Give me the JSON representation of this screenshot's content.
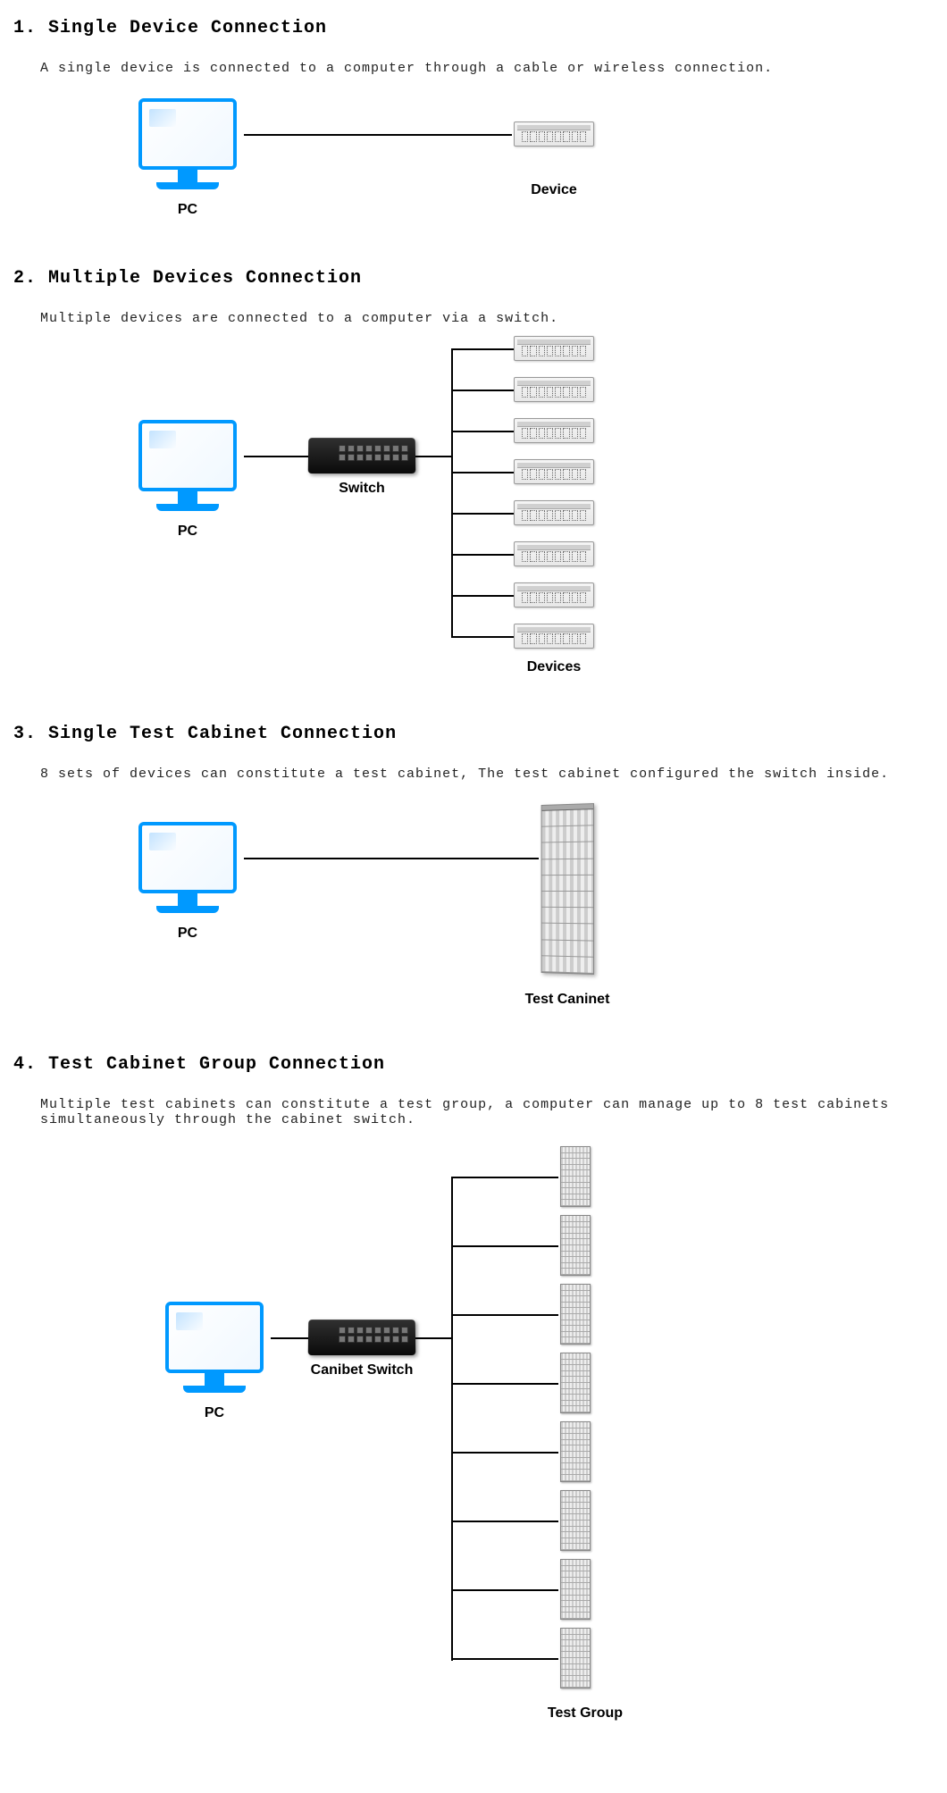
{
  "sections": {
    "s1": {
      "title": "1. Single Device Connection",
      "desc": "A single device is connected to a computer through a cable or wireless connection.",
      "labels": {
        "pc": "PC",
        "device": "Device"
      },
      "colors": {
        "pc_border": "#0099ff",
        "line": "#000000"
      }
    },
    "s2": {
      "title": "2. Multiple Devices Connection",
      "desc": "Multiple devices are connected to a computer via a switch.",
      "labels": {
        "pc": "PC",
        "switch": "Switch",
        "devices": "Devices"
      },
      "device_count": 8,
      "colors": {
        "switch_bg": "#1a1a1a"
      }
    },
    "s3": {
      "title": "3. Single Test Cabinet Connection",
      "desc": "8 sets of devices can constitute a test cabinet, The test cabinet configured the switch inside.",
      "labels": {
        "pc": "PC",
        "cabinet": "Test Caninet"
      },
      "cabinet_units": 10
    },
    "s4": {
      "title": "4. Test Cabinet Group Connection",
      "desc": "Multiple test cabinets can constitute a test group, a computer can manage up to 8 test cabinets simultaneously through the cabinet switch.",
      "labels": {
        "pc": "PC",
        "switch": "Canibet Switch",
        "group": "Test Group"
      },
      "cabinet_count": 8
    }
  },
  "diagram_style": {
    "pc_color": "#0099ff",
    "line_color": "#000000",
    "device_bg": "#eeeeee",
    "switch_bg": "#1a1a1a",
    "font_title_size": 20,
    "font_desc_size": 15,
    "font_label_size": 16
  }
}
